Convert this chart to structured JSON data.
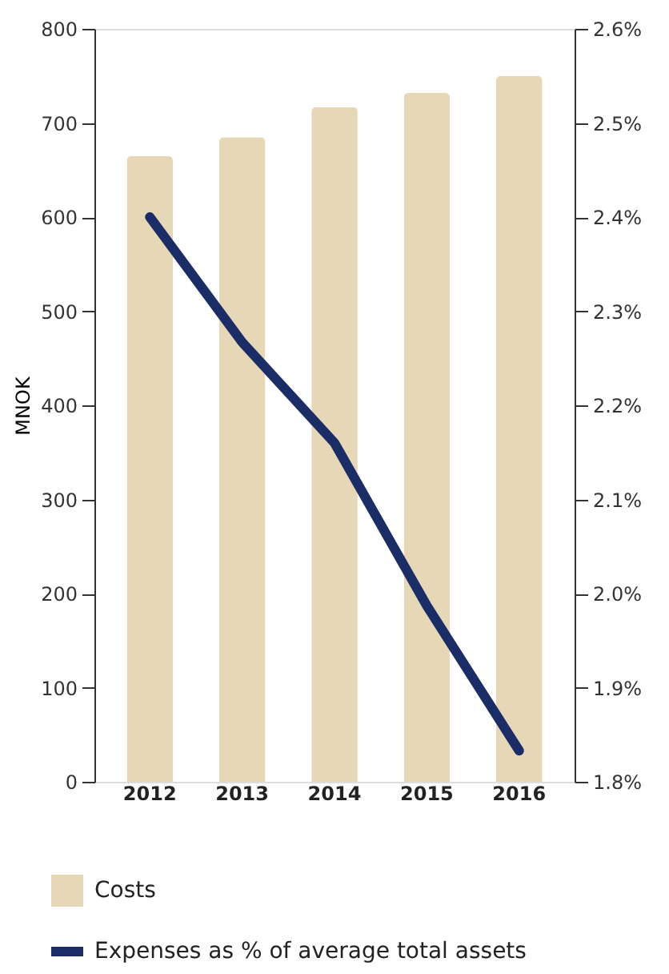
{
  "chart_data": {
    "type": "bar",
    "categories": [
      "2012",
      "2013",
      "2014",
      "2015",
      "2016"
    ],
    "ylabel": "MNOK",
    "ylim": [
      0,
      800
    ],
    "yticks": [
      0,
      100,
      200,
      300,
      400,
      500,
      600,
      700,
      800
    ],
    "y2lim": [
      1.8,
      2.6
    ],
    "y2ticks": [
      {
        "value": 1.8,
        "label": "1.8%"
      },
      {
        "value": 1.9,
        "label": "1.9%"
      },
      {
        "value": 2.0,
        "label": "2.0%"
      },
      {
        "value": 2.1,
        "label": "2.1%"
      },
      {
        "value": 2.2,
        "label": "2.2%"
      },
      {
        "value": 2.3,
        "label": "2.3%"
      },
      {
        "value": 2.4,
        "label": "2.4%"
      },
      {
        "value": 2.5,
        "label": "2.5%"
      },
      {
        "value": 2.6,
        "label": "2.6%"
      }
    ],
    "grid": false,
    "legend": "bottom left",
    "series": [
      {
        "name": "Costs",
        "color": "#e6d7b6",
        "values": [
          665,
          685,
          717,
          732,
          750
        ]
      },
      {
        "name": "Expenses as % of average total assets",
        "type": "line",
        "axis": "y2",
        "color": "#1b2d66",
        "values": [
          2.4,
          2.267,
          2.16,
          1.987,
          1.833
        ]
      }
    ]
  }
}
